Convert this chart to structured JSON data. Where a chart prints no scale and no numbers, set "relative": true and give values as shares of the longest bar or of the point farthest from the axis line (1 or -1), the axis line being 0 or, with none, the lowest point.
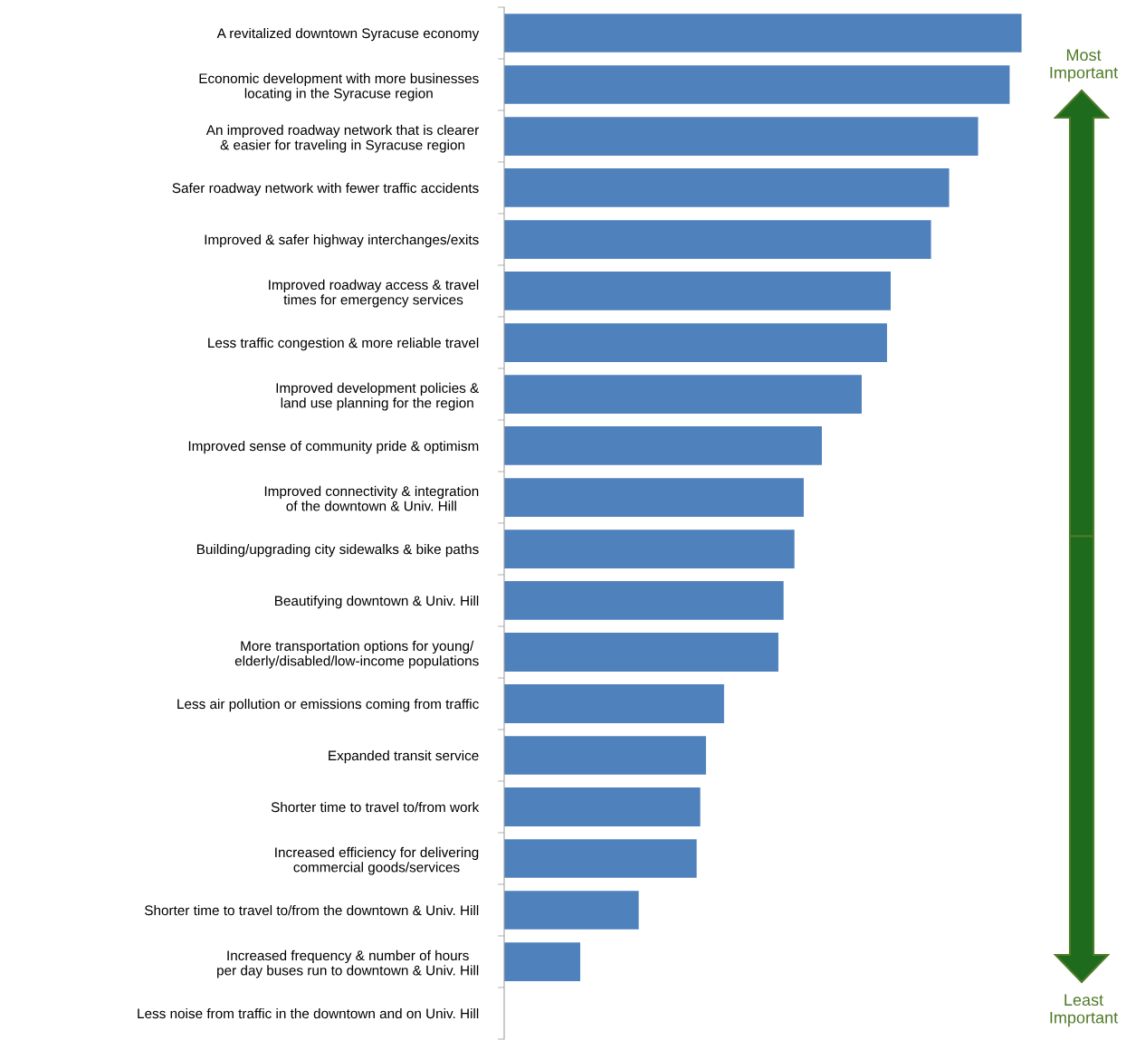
{
  "chart_data": {
    "type": "bar",
    "orientation": "horizontal",
    "relative": true,
    "color": "#4f81bd",
    "categories": [
      "A revitalized downtown Syracuse economy",
      "Economic development with more businesses\nlocating in the Syracuse region",
      "An improved roadway network that is clearer\n& easier for traveling in Syracuse region",
      "Safer roadway network with fewer traffic accidents",
      "Improved & safer highway interchanges/exits",
      "Improved roadway access & travel\ntimes for emergency services",
      "Less traffic congestion & more reliable travel",
      "Improved development policies &\nland use planning for the region",
      "Improved sense of community pride & optimism",
      "Improved connectivity & integration\nof the downtown & Univ. Hill",
      "Building/upgrading city sidewalks & bike paths",
      "Beautifying downtown & Univ. Hill",
      "More transportation options for young/\nelderly/disabled/low-income populations",
      "Less air pollution or emissions coming from traffic",
      "Expanded transit service",
      "Shorter time to travel to/from work",
      "Increased efficiency for delivering\ncommercial goods/services",
      "Shorter time to travel to/from the downtown & Univ. Hill",
      "Increased frequency & number of hours\nper day buses run to downtown & Univ. Hill",
      "Less noise from traffic in the downtown and on Univ. Hill"
    ],
    "values": [
      1,
      0.977,
      0.916,
      0.86,
      0.825,
      0.747,
      0.74,
      0.691,
      0.614,
      0.579,
      0.561,
      0.54,
      0.53,
      0.425,
      0.39,
      0.379,
      0.372,
      0.26,
      0.147,
      0
    ],
    "annotations": [
      "Most\nImportant",
      "Least\nImportant"
    ],
    "grid": false,
    "legend": false
  }
}
